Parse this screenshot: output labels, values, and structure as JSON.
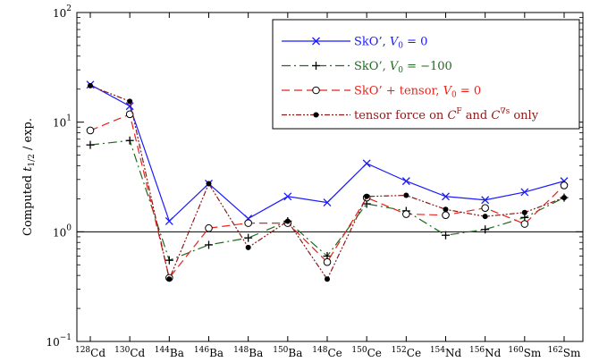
{
  "chart_data": {
    "type": "line",
    "title": "",
    "xlabel": "",
    "ylabel_pre": "Computed ",
    "ylabel_t": "t",
    "ylabel_sub": "1/2",
    "ylabel_post": " / exp.",
    "yscale": "log",
    "ylim": [
      0.1,
      100
    ],
    "yticks": [
      {
        "base": "10",
        "exp": "−1",
        "value": 0.1
      },
      {
        "base": "10",
        "exp": "0",
        "value": 1
      },
      {
        "base": "10",
        "exp": "1",
        "value": 10
      },
      {
        "base": "10",
        "exp": "2",
        "value": 100
      }
    ],
    "categories": [
      {
        "mass": "128",
        "el": "Cd"
      },
      {
        "mass": "130",
        "el": "Cd"
      },
      {
        "mass": "144",
        "el": "Ba"
      },
      {
        "mass": "146",
        "el": "Ba"
      },
      {
        "mass": "148",
        "el": "Ba"
      },
      {
        "mass": "150",
        "el": "Ba"
      },
      {
        "mass": "148",
        "el": "Ce"
      },
      {
        "mass": "150",
        "el": "Ce"
      },
      {
        "mass": "152",
        "el": "Ce"
      },
      {
        "mass": "154",
        "el": "Nd"
      },
      {
        "mass": "156",
        "el": "Nd"
      },
      {
        "mass": "160",
        "el": "Sm"
      },
      {
        "mass": "162",
        "el": "Sm"
      }
    ],
    "reference_line": 1,
    "legend_position": "top-right",
    "series": [
      {
        "name": "SkO’, V0 = 0",
        "legend": {
          "text": "SkO’, ",
          "var": "V",
          "sub": "0",
          "rest": " = 0"
        },
        "color": "#1a1aff",
        "dash": "",
        "marker": "x",
        "values": [
          22,
          14,
          1.25,
          2.75,
          1.32,
          2.1,
          1.85,
          4.2,
          2.9,
          2.1,
          1.95,
          2.3,
          2.9
        ]
      },
      {
        "name": "SkO’, V0 = −100",
        "legend": {
          "text": "SkO’, ",
          "var": "V",
          "sub": "0",
          "rest": " = −100"
        },
        "color": "#1f6b1f",
        "dash": "10,4,2,4",
        "marker": "plus",
        "values": [
          6.2,
          6.8,
          0.55,
          0.76,
          0.88,
          1.25,
          0.6,
          1.8,
          1.55,
          0.93,
          1.05,
          1.35,
          2.05
        ]
      },
      {
        "name": "SkO’ + tensor, V0 = 0",
        "legend": {
          "text": "SkO’ + tensor, ",
          "var": "V",
          "sub": "0",
          "rest": " = 0"
        },
        "color": "#e8211a",
        "dash": "9,5",
        "marker": "circle",
        "values": [
          8.4,
          11.8,
          0.38,
          1.08,
          1.2,
          1.2,
          0.53,
          2.05,
          1.45,
          1.42,
          1.65,
          1.18,
          2.65
        ]
      },
      {
        "name": "tensor force on CF and C∇s only",
        "legend": {
          "text": "tensor force on ",
          "var": "C",
          "sup": "F",
          "rest": " and ",
          "var2": "C",
          "sup2": "∇s",
          "rest2": " only"
        },
        "color": "#8b1a1a",
        "dash": "6,2,2,2,2,2",
        "marker": "dot",
        "values": [
          21.5,
          15.5,
          0.37,
          2.75,
          0.72,
          1.25,
          0.37,
          2.1,
          2.15,
          1.6,
          1.38,
          1.5,
          2.05
        ]
      }
    ]
  }
}
